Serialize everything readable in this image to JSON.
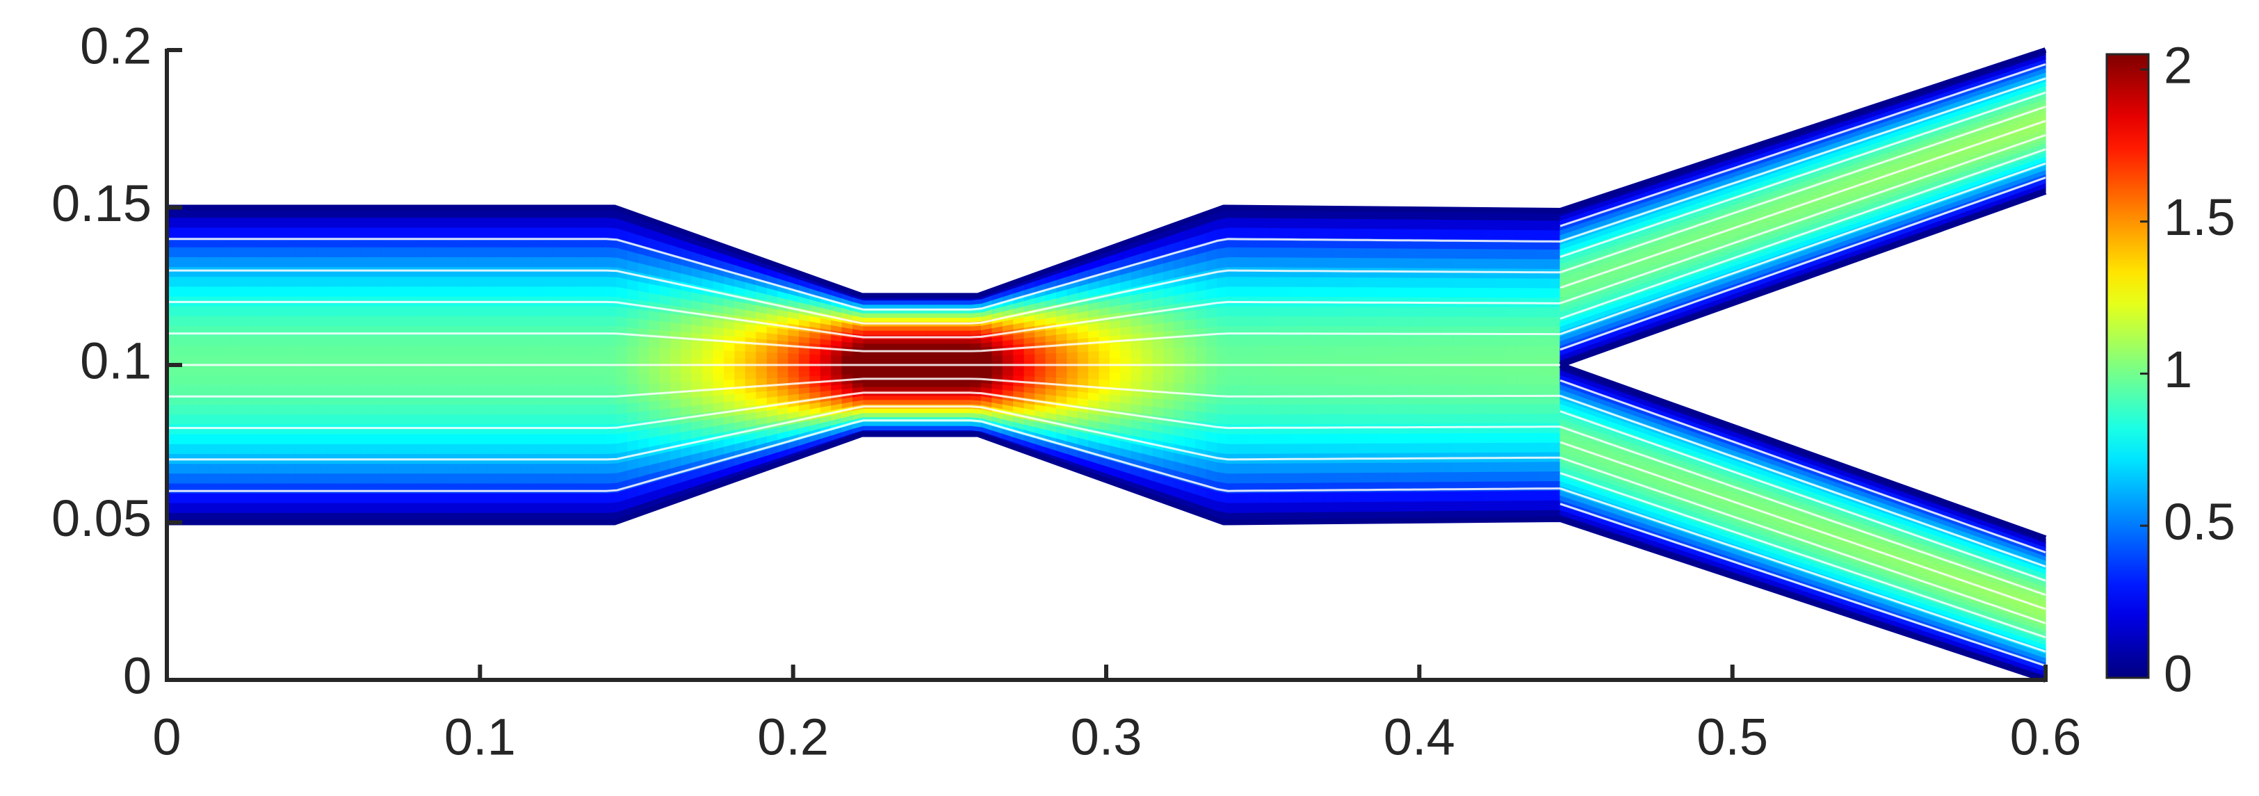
{
  "chart_data": {
    "type": "flow",
    "xlim": [
      0,
      0.6
    ],
    "ylim": [
      0,
      0.2
    ],
    "xticks": [
      0,
      0.1,
      0.2,
      0.3,
      0.4,
      0.5,
      0.6
    ],
    "yticks": [
      0,
      0.05,
      0.1,
      0.15,
      0.2
    ],
    "colormap": "jet",
    "clim": [
      0,
      2.05
    ],
    "cticks": [
      0,
      0.5,
      1,
      1.5,
      2
    ],
    "walls": [
      {
        "x": [
          0,
          0.143,
          0.222,
          0.259,
          0.3375,
          0.445,
          0.6
        ],
        "y": [
          0.15,
          0.15,
          0.122,
          0.122,
          0.15,
          0.149,
          0.2
        ]
      },
      {
        "x": [
          0,
          0.143,
          0.222,
          0.259,
          0.3375,
          0.445,
          0.6
        ],
        "y": [
          0.05,
          0.05,
          0.078,
          0.078,
          0.05,
          0.051,
          0
        ]
      },
      {
        "x": [
          0.445,
          0.6
        ],
        "y": [
          0.1,
          0.155
        ]
      },
      {
        "x": [
          0.445,
          0.6
        ],
        "y": [
          0.1,
          0.045
        ]
      }
    ]
  }
}
